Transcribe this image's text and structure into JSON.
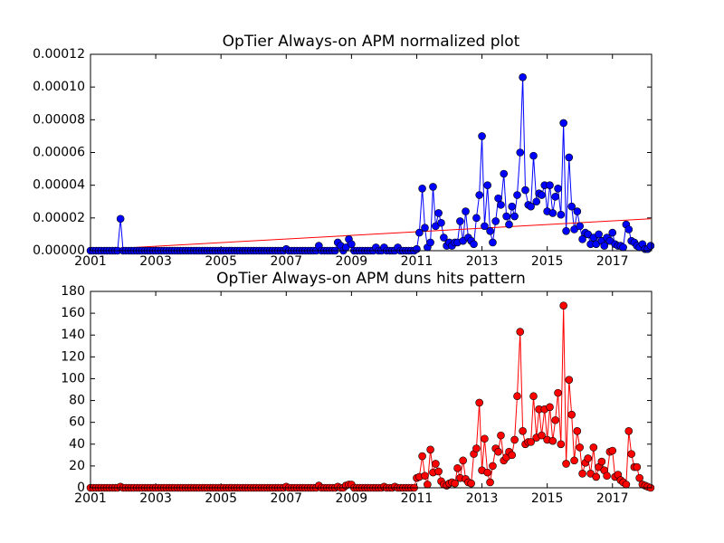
{
  "chart_data": [
    {
      "type": "line",
      "title": "OpTier Always-on APM normalized plot",
      "x": [
        2001,
        2001.08,
        2001.17,
        2001.25,
        2001.33,
        2001.42,
        2001.5,
        2001.58,
        2001.67,
        2001.75,
        2001.83,
        2001.92,
        2002,
        2002.08,
        2002.17,
        2002.25,
        2002.33,
        2002.42,
        2002.5,
        2002.58,
        2002.67,
        2002.75,
        2002.83,
        2002.92,
        2003,
        2003.08,
        2003.17,
        2003.25,
        2003.33,
        2003.42,
        2003.5,
        2003.58,
        2003.67,
        2003.75,
        2003.83,
        2003.92,
        2004,
        2004.08,
        2004.17,
        2004.25,
        2004.33,
        2004.42,
        2004.5,
        2004.58,
        2004.67,
        2004.75,
        2004.83,
        2004.92,
        2005,
        2005.08,
        2005.17,
        2005.25,
        2005.33,
        2005.42,
        2005.5,
        2005.58,
        2005.67,
        2005.75,
        2005.83,
        2005.92,
        2006,
        2006.08,
        2006.17,
        2006.25,
        2006.33,
        2006.42,
        2006.5,
        2006.58,
        2006.67,
        2006.75,
        2006.83,
        2006.92,
        2007,
        2007.08,
        2007.17,
        2007.25,
        2007.33,
        2007.42,
        2007.5,
        2007.58,
        2007.67,
        2007.75,
        2007.83,
        2007.92,
        2008,
        2008.08,
        2008.17,
        2008.25,
        2008.33,
        2008.42,
        2008.5,
        2008.58,
        2008.67,
        2008.75,
        2008.83,
        2008.92,
        2009,
        2009.08,
        2009.17,
        2009.25,
        2009.33,
        2009.42,
        2009.5,
        2009.58,
        2009.67,
        2009.75,
        2009.83,
        2009.92,
        2010,
        2010.08,
        2010.17,
        2010.25,
        2010.33,
        2010.42,
        2010.5,
        2010.58,
        2010.67,
        2010.75,
        2010.83,
        2010.92,
        2011,
        2011.08,
        2011.17,
        2011.25,
        2011.33,
        2011.42,
        2011.5,
        2011.58,
        2011.67,
        2011.75,
        2011.83,
        2011.92,
        2012,
        2012.08,
        2012.17,
        2012.25,
        2012.33,
        2012.42,
        2012.5,
        2012.58,
        2012.67,
        2012.75,
        2012.83,
        2012.92,
        2013,
        2013.08,
        2013.17,
        2013.25,
        2013.33,
        2013.42,
        2013.5,
        2013.58,
        2013.67,
        2013.75,
        2013.83,
        2013.92,
        2014,
        2014.08,
        2014.17,
        2014.25,
        2014.33,
        2014.42,
        2014.5,
        2014.58,
        2014.67,
        2014.75,
        2014.83,
        2014.92,
        2015,
        2015.08,
        2015.17,
        2015.25,
        2015.33,
        2015.42,
        2015.5,
        2015.58,
        2015.67,
        2015.75,
        2015.83,
        2015.92,
        2016,
        2016.08,
        2016.17,
        2016.25,
        2016.33,
        2016.42,
        2016.5,
        2016.58,
        2016.67,
        2016.75,
        2016.83,
        2016.92,
        2017,
        2017.08,
        2017.17,
        2017.25,
        2017.33,
        2017.42,
        2017.5,
        2017.58,
        2017.67,
        2017.75,
        2017.83,
        2017.92,
        2018,
        2018.08,
        2018.17
      ],
      "series": [
        {
          "color": "#0000ff",
          "values": [
            0,
            0,
            0,
            0,
            0,
            0,
            0,
            0,
            0,
            0,
            0,
            1.95e-05,
            0,
            0,
            0,
            0,
            0,
            0,
            0,
            0,
            0,
            0,
            0,
            0,
            0,
            0,
            0,
            0,
            0,
            0,
            0,
            0,
            0,
            0,
            0,
            0,
            0,
            0,
            0,
            0,
            0,
            0,
            0,
            0,
            0,
            0,
            0,
            0,
            0,
            0,
            0,
            0,
            0,
            0,
            0,
            0,
            0,
            0,
            0,
            0,
            0,
            0,
            0,
            0,
            0,
            0,
            0,
            0,
            0,
            0,
            0,
            0,
            1e-06,
            0,
            0,
            0,
            0,
            0,
            0,
            0,
            0,
            0,
            0,
            0,
            3e-06,
            0,
            0,
            0,
            0,
            0,
            0,
            5e-06,
            3e-06,
            0,
            2e-06,
            7e-06,
            4e-06,
            0,
            0,
            0,
            0,
            0,
            0,
            0,
            0,
            2e-06,
            0,
            0,
            2e-06,
            0,
            0,
            0,
            0,
            2e-06,
            0,
            0,
            0,
            0,
            0,
            0,
            1e-06,
            1.1e-05,
            3.8e-05,
            1.4e-05,
            2e-06,
            5e-06,
            3.9e-05,
            1.5e-05,
            2.3e-05,
            1.7e-05,
            8e-06,
            3e-06,
            5e-06,
            3e-06,
            5e-06,
            5e-06,
            1.8e-05,
            6e-06,
            2.4e-05,
            8e-06,
            6e-06,
            4e-06,
            2e-05,
            3.4e-05,
            7e-05,
            1.5e-05,
            4e-05,
            1.2e-05,
            5e-06,
            1.8e-05,
            3.2e-05,
            2.8e-05,
            4.7e-05,
            2.1e-05,
            1.6e-05,
            2.7e-05,
            2.1e-05,
            3.4e-05,
            6e-05,
            0.000106,
            3.7e-05,
            2.8e-05,
            2.7e-05,
            5.8e-05,
            3e-05,
            3.5e-05,
            3.4e-05,
            4e-05,
            2.4e-05,
            4e-05,
            2.3e-05,
            3.3e-05,
            3.8e-05,
            2.2e-05,
            7.8e-05,
            1.2e-05,
            5.7e-05,
            2.7e-05,
            1.3e-05,
            2.4e-05,
            1.5e-05,
            7e-06,
            1.1e-05,
            1e-05,
            4e-06,
            8e-06,
            4e-06,
            1e-05,
            6e-06,
            3e-06,
            8e-06,
            6e-06,
            1.1e-05,
            4e-06,
            3e-06,
            3e-06,
            2e-06,
            1.6e-05,
            1.3e-05,
            6e-06,
            5e-06,
            3e-06,
            2e-06,
            4e-06,
            1e-06,
            1e-06,
            3e-06
          ]
        }
      ],
      "trend": {
        "x": [
          2001,
          2018.17
        ],
        "values": [
          5e-07,
          1.95e-05
        ],
        "color": "#ff0000"
      },
      "xlim": [
        2001,
        2018.2
      ],
      "xticks": [
        2001,
        2003,
        2005,
        2007,
        2009,
        2011,
        2013,
        2015,
        2017
      ],
      "ylim": [
        0,
        0.00012
      ],
      "yticks": [
        {
          "value": 0,
          "label": "0.00000"
        },
        {
          "value": 2e-05,
          "label": "0.00002"
        },
        {
          "value": 4e-05,
          "label": "0.00004"
        },
        {
          "value": 6e-05,
          "label": "0.00006"
        },
        {
          "value": 8e-05,
          "label": "0.00008"
        },
        {
          "value": 0.0001,
          "label": "0.00010"
        },
        {
          "value": 0.00012,
          "label": "0.00012"
        }
      ]
    },
    {
      "type": "line",
      "title": "OpTier Always-on APM duns hits pattern",
      "x": [
        2001,
        2001.08,
        2001.17,
        2001.25,
        2001.33,
        2001.42,
        2001.5,
        2001.58,
        2001.67,
        2001.75,
        2001.83,
        2001.92,
        2002,
        2002.08,
        2002.17,
        2002.25,
        2002.33,
        2002.42,
        2002.5,
        2002.58,
        2002.67,
        2002.75,
        2002.83,
        2002.92,
        2003,
        2003.08,
        2003.17,
        2003.25,
        2003.33,
        2003.42,
        2003.5,
        2003.58,
        2003.67,
        2003.75,
        2003.83,
        2003.92,
        2004,
        2004.08,
        2004.17,
        2004.25,
        2004.33,
        2004.42,
        2004.5,
        2004.58,
        2004.67,
        2004.75,
        2004.83,
        2004.92,
        2005,
        2005.08,
        2005.17,
        2005.25,
        2005.33,
        2005.42,
        2005.5,
        2005.58,
        2005.67,
        2005.75,
        2005.83,
        2005.92,
        2006,
        2006.08,
        2006.17,
        2006.25,
        2006.33,
        2006.42,
        2006.5,
        2006.58,
        2006.67,
        2006.75,
        2006.83,
        2006.92,
        2007,
        2007.08,
        2007.17,
        2007.25,
        2007.33,
        2007.42,
        2007.5,
        2007.58,
        2007.67,
        2007.75,
        2007.83,
        2007.92,
        2008,
        2008.08,
        2008.17,
        2008.25,
        2008.33,
        2008.42,
        2008.5,
        2008.58,
        2008.67,
        2008.75,
        2008.83,
        2008.92,
        2009,
        2009.08,
        2009.17,
        2009.25,
        2009.33,
        2009.42,
        2009.5,
        2009.58,
        2009.67,
        2009.75,
        2009.83,
        2009.92,
        2010,
        2010.08,
        2010.17,
        2010.25,
        2010.33,
        2010.42,
        2010.5,
        2010.58,
        2010.67,
        2010.75,
        2010.83,
        2010.92,
        2011,
        2011.08,
        2011.17,
        2011.25,
        2011.33,
        2011.42,
        2011.5,
        2011.58,
        2011.67,
        2011.75,
        2011.83,
        2011.92,
        2012,
        2012.08,
        2012.17,
        2012.25,
        2012.33,
        2012.42,
        2012.5,
        2012.58,
        2012.67,
        2012.75,
        2012.83,
        2012.92,
        2013,
        2013.08,
        2013.17,
        2013.25,
        2013.33,
        2013.42,
        2013.5,
        2013.58,
        2013.67,
        2013.75,
        2013.83,
        2013.92,
        2014,
        2014.08,
        2014.17,
        2014.25,
        2014.33,
        2014.42,
        2014.5,
        2014.58,
        2014.67,
        2014.75,
        2014.83,
        2014.92,
        2015,
        2015.08,
        2015.17,
        2015.25,
        2015.33,
        2015.42,
        2015.5,
        2015.58,
        2015.67,
        2015.75,
        2015.83,
        2015.92,
        2016,
        2016.08,
        2016.17,
        2016.25,
        2016.33,
        2016.42,
        2016.5,
        2016.58,
        2016.67,
        2016.75,
        2016.83,
        2016.92,
        2017,
        2017.08,
        2017.17,
        2017.25,
        2017.33,
        2017.42,
        2017.5,
        2017.58,
        2017.67,
        2017.75,
        2017.83,
        2017.92,
        2018,
        2018.08,
        2018.17
      ],
      "series": [
        {
          "color": "#ff0000",
          "values": [
            0,
            0,
            0,
            0,
            0,
            0,
            0,
            0,
            0,
            0,
            0,
            1,
            0,
            0,
            0,
            0,
            0,
            0,
            0,
            0,
            0,
            0,
            0,
            0,
            0,
            0,
            0,
            0,
            0,
            0,
            0,
            0,
            0,
            0,
            0,
            0,
            0,
            0,
            0,
            0,
            0,
            0,
            0,
            0,
            0,
            0,
            0,
            0,
            0,
            0,
            0,
            0,
            0,
            0,
            0,
            0,
            0,
            0,
            0,
            0,
            0,
            0,
            0,
            0,
            0,
            0,
            0,
            0,
            0,
            0,
            0,
            0,
            1,
            0,
            0,
            0,
            0,
            0,
            0,
            0,
            0,
            0,
            0,
            0,
            2,
            0,
            0,
            0,
            0,
            0,
            0,
            1,
            0,
            0,
            2,
            3,
            3,
            0,
            0,
            0,
            0,
            0,
            0,
            0,
            0,
            0,
            0,
            0,
            1,
            0,
            0,
            0,
            1,
            0,
            0,
            0,
            0,
            0,
            0,
            0,
            9,
            10,
            29,
            11,
            3,
            35,
            14,
            22,
            15,
            6,
            3,
            2,
            4,
            5,
            4,
            18,
            9,
            25,
            8,
            5,
            4,
            31,
            36,
            78,
            16,
            45,
            14,
            5,
            20,
            36,
            33,
            48,
            25,
            28,
            33,
            30,
            44,
            84,
            143,
            52,
            40,
            42,
            42,
            84,
            46,
            72,
            48,
            72,
            44,
            74,
            43,
            62,
            87,
            40,
            167,
            22,
            99,
            67,
            25,
            52,
            37,
            13,
            23,
            27,
            13,
            37,
            10,
            19,
            24,
            16,
            11,
            33,
            34,
            10,
            12,
            7,
            5,
            3,
            52,
            31,
            19,
            19,
            9,
            3,
            2,
            1,
            0
          ]
        }
      ],
      "xlim": [
        2001,
        2018.2
      ],
      "xticks": [
        2001,
        2003,
        2005,
        2007,
        2009,
        2011,
        2013,
        2015,
        2017
      ],
      "ylim": [
        0,
        180
      ],
      "yticks": [
        0,
        20,
        40,
        60,
        80,
        100,
        120,
        140,
        160,
        180
      ]
    }
  ]
}
